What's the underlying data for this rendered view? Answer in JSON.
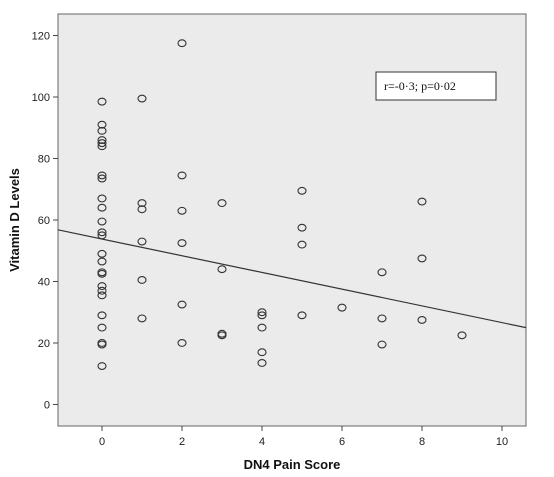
{
  "chart_data": {
    "type": "scatter",
    "xlabel": "DN4 Pain Score",
    "ylabel": "Vitamin D Levels",
    "xlim": [
      -1.1,
      10.6
    ],
    "ylim": [
      -7,
      127
    ],
    "xticks": [
      "0",
      "2",
      "4",
      "6",
      "8",
      "10"
    ],
    "yticks": [
      "0",
      "20",
      "40",
      "60",
      "80",
      "100",
      "120"
    ],
    "grid": false,
    "background_color": "#ebebeb",
    "marker_color": "#333333",
    "line_color": "#333333",
    "annotation": "r=-0·3; p=0·02",
    "fit_line": {
      "x": [
        -1.1,
        10.6
      ],
      "y": [
        56.8,
        25
      ]
    },
    "points": [
      {
        "x": 0,
        "y": 98.5
      },
      {
        "x": 0,
        "y": 91
      },
      {
        "x": 0,
        "y": 89
      },
      {
        "x": 0,
        "y": 86
      },
      {
        "x": 0,
        "y": 85
      },
      {
        "x": 0,
        "y": 84
      },
      {
        "x": 0,
        "y": 74.5
      },
      {
        "x": 0,
        "y": 73.5
      },
      {
        "x": 0,
        "y": 67
      },
      {
        "x": 0,
        "y": 64
      },
      {
        "x": 0,
        "y": 59.5
      },
      {
        "x": 0,
        "y": 56
      },
      {
        "x": 0,
        "y": 55
      },
      {
        "x": 0,
        "y": 49
      },
      {
        "x": 0,
        "y": 46.5
      },
      {
        "x": 0,
        "y": 43
      },
      {
        "x": 0,
        "y": 42.5
      },
      {
        "x": 0,
        "y": 38.5
      },
      {
        "x": 0,
        "y": 37
      },
      {
        "x": 0,
        "y": 35.5
      },
      {
        "x": 0,
        "y": 29
      },
      {
        "x": 0,
        "y": 25
      },
      {
        "x": 0,
        "y": 20
      },
      {
        "x": 0,
        "y": 19.5
      },
      {
        "x": 0,
        "y": 12.5
      },
      {
        "x": 1,
        "y": 99.5
      },
      {
        "x": 1,
        "y": 65.5
      },
      {
        "x": 1,
        "y": 63.5
      },
      {
        "x": 1,
        "y": 53
      },
      {
        "x": 1,
        "y": 40.5
      },
      {
        "x": 1,
        "y": 28
      },
      {
        "x": 2,
        "y": 117.5
      },
      {
        "x": 2,
        "y": 74.5
      },
      {
        "x": 2,
        "y": 63
      },
      {
        "x": 2,
        "y": 52.5
      },
      {
        "x": 2,
        "y": 32.5
      },
      {
        "x": 2,
        "y": 20
      },
      {
        "x": 3,
        "y": 65.5
      },
      {
        "x": 3,
        "y": 44
      },
      {
        "x": 3,
        "y": 23
      },
      {
        "x": 3,
        "y": 22.5
      },
      {
        "x": 4,
        "y": 30
      },
      {
        "x": 4,
        "y": 29
      },
      {
        "x": 4,
        "y": 25
      },
      {
        "x": 4,
        "y": 17
      },
      {
        "x": 4,
        "y": 13.5
      },
      {
        "x": 5,
        "y": 69.5
      },
      {
        "x": 5,
        "y": 57.5
      },
      {
        "x": 5,
        "y": 52
      },
      {
        "x": 5,
        "y": 29
      },
      {
        "x": 6,
        "y": 31.5
      },
      {
        "x": 7,
        "y": 43
      },
      {
        "x": 7,
        "y": 28
      },
      {
        "x": 7,
        "y": 19.5
      },
      {
        "x": 8,
        "y": 66
      },
      {
        "x": 8,
        "y": 47.5
      },
      {
        "x": 8,
        "y": 27.5
      },
      {
        "x": 9,
        "y": 22.5
      }
    ]
  }
}
